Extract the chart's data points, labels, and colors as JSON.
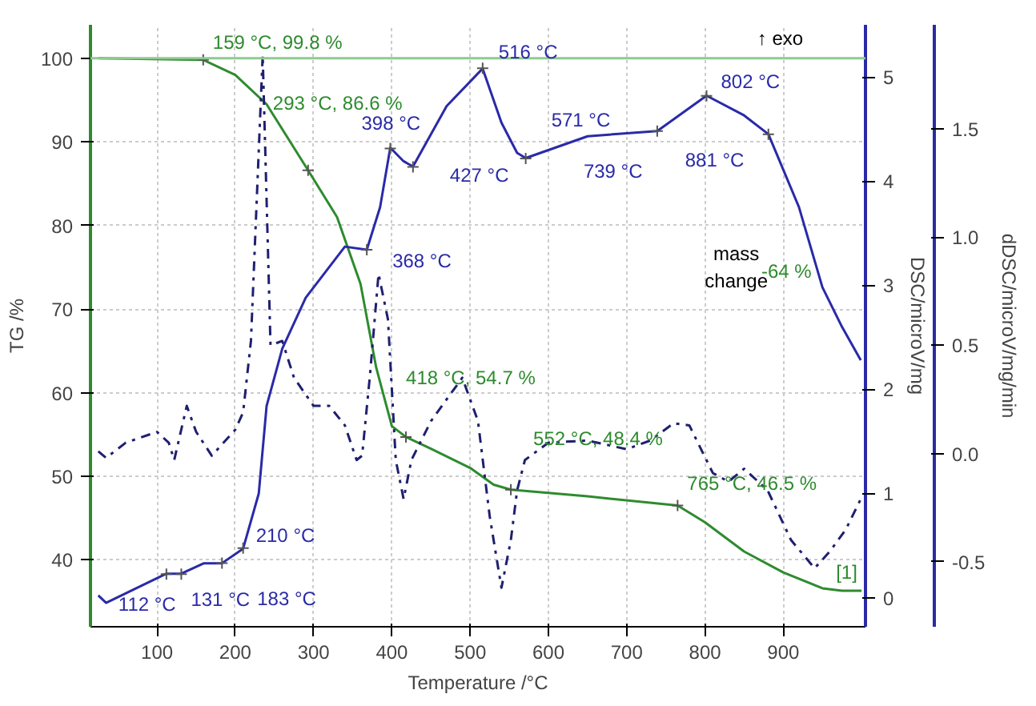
{
  "chart_data": {
    "type": "line",
    "xlabel": "Temperature /°C",
    "ylabel": "TG /%",
    "y2label": "DSC/microV/mg",
    "y3label": "dDSC/microV/mg/min",
    "xlim": [
      15,
      1005
    ],
    "xticks": [
      100,
      200,
      300,
      400,
      500,
      600,
      700,
      800,
      900
    ],
    "ylim": [
      32,
      104
    ],
    "yticks": [
      40,
      50,
      60,
      70,
      80,
      90,
      100
    ],
    "y2lim": [
      -0.28,
      5.5
    ],
    "y2ticks": [
      0,
      1,
      2,
      3,
      4,
      5
    ],
    "y3lim": [
      -0.8,
      1.98
    ],
    "y3ticks": [
      {
        "value": -0.5,
        "label": "-0.5"
      },
      {
        "value": 0,
        "label": "0.0"
      },
      {
        "value": 0.5,
        "label": "0.5"
      },
      {
        "value": 1,
        "label": "1.0"
      },
      {
        "value": 1.5,
        "label": "1.5"
      }
    ],
    "grid": true,
    "series": [
      {
        "color": "#2e8b2e",
        "line_style": "solid",
        "x": [
          25,
          159,
          200,
          240,
          293,
          330,
          360,
          380,
          400,
          418,
          450,
          500,
          530,
          552,
          650,
          765,
          800,
          850,
          900,
          950,
          975,
          1000
        ],
        "values": [
          100,
          99.8,
          98,
          94.5,
          86.6,
          81,
          73,
          63,
          56,
          54.7,
          53.3,
          51,
          49,
          48.4,
          47.6,
          46.5,
          44.5,
          41,
          38.5,
          36.6,
          36.3,
          36.3
        ]
      },
      {
        "color": "#2a2aa8",
        "line_style": "solid",
        "axis": "y2",
        "x": [
          25,
          35,
          112,
          131,
          160,
          183,
          210,
          230,
          240,
          260,
          290,
          340,
          368,
          385,
          398,
          415,
          427,
          470,
          516,
          540,
          560,
          571,
          650,
          739,
          802,
          850,
          881,
          920,
          950,
          975,
          999
        ],
        "values": [
          0.02,
          -0.05,
          0.23,
          0.23,
          0.33,
          0.33,
          0.47,
          1.0,
          1.84,
          2.39,
          2.88,
          3.37,
          3.34,
          3.75,
          4.32,
          4.19,
          4.14,
          4.72,
          5.08,
          4.56,
          4.27,
          4.22,
          4.43,
          4.48,
          4.82,
          4.63,
          4.45,
          3.75,
          2.98,
          2.6,
          2.28
        ]
      },
      {
        "color": "#1f1f70",
        "line_style": "dashdot",
        "axis": "y3",
        "x": [
          25,
          35,
          60,
          100,
          115,
          122,
          138,
          150,
          170,
          200,
          210,
          220,
          235,
          245,
          260,
          275,
          300,
          320,
          340,
          355,
          362,
          372,
          383,
          395,
          405,
          415,
          425,
          450,
          490,
          510,
          525,
          540,
          552,
          560,
          570,
          600,
          650,
          700,
          730,
          760,
          780,
          810,
          830,
          850,
          880,
          910,
          940,
          960,
          980,
          999
        ],
        "values": [
          0.01,
          -0.02,
          0.05,
          0.1,
          0.05,
          -0.03,
          0.22,
          0.1,
          -0.01,
          0.11,
          0.19,
          0.52,
          1.84,
          0.5,
          0.52,
          0.35,
          0.22,
          0.22,
          0.13,
          -0.03,
          -0.01,
          0.36,
          0.83,
          0.62,
          -0.03,
          -0.21,
          -0.03,
          0.15,
          0.35,
          0.15,
          -0.29,
          -0.62,
          -0.4,
          -0.17,
          -0.03,
          0.05,
          0.06,
          0.02,
          0.06,
          0.14,
          0.13,
          -0.09,
          -0.13,
          -0.07,
          -0.17,
          -0.4,
          -0.53,
          -0.45,
          -0.35,
          -0.21
        ]
      }
    ],
    "ref_lines": [
      {
        "axis": "y",
        "value": 100,
        "color": "#8fc98f"
      }
    ],
    "annotations": [
      {
        "text": "159 °C, 99.8 %",
        "x": 159,
        "y": 99.8
      },
      {
        "text": "293 °C, 86.6 %",
        "x": 293,
        "y": 86.6
      },
      {
        "text": "418 °C, 54.7 %",
        "x": 418,
        "y": 54.7
      },
      {
        "text": "552 °C, 48.4 %",
        "x": 552,
        "y": 48.4
      },
      {
        "text": "765 °C, 46.5 %",
        "x": 765,
        "y": 46.5
      },
      {
        "text": "112 °C",
        "x": 112,
        "y": 38.3
      },
      {
        "text": "131 °C",
        "x": 131,
        "y": 38.3
      },
      {
        "text": "183 °C",
        "x": 183,
        "y": 39.6
      },
      {
        "text": "210 °C",
        "x": 210,
        "y": 41.4
      },
      {
        "text": "368 °C",
        "x": 368,
        "y": 77.1
      },
      {
        "text": "398 °C",
        "x": 398,
        "y": 89.2
      },
      {
        "text": "427 °C",
        "x": 427,
        "y": 87.0
      },
      {
        "text": "516 °C",
        "x": 516,
        "y": 98.8
      },
      {
        "text": "571 °C",
        "x": 571,
        "y": 88.0
      },
      {
        "text": "739 °C",
        "x": 739,
        "y": 91.3
      },
      {
        "text": "802 °C",
        "x": 802,
        "y": 95.5
      },
      {
        "text": "881 °C",
        "x": 881,
        "y": 90.9
      },
      "mass change",
      "-64 %",
      "↑ exo",
      "[1]"
    ]
  }
}
